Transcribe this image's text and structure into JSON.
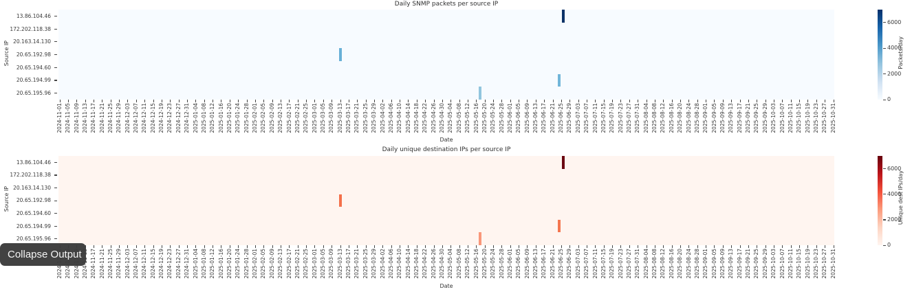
{
  "overlay": {
    "collapse_button_label": "Collapse Output"
  },
  "chart_data": {
    "type": "heatmap",
    "layout_note": "two stacked seaborn-style heatmaps sharing x and y axes, colorbar on right",
    "x_axis": {
      "label": "Date",
      "start": "2024-11-01",
      "end": "2025-10-31",
      "tick_interval_days": 4,
      "tick_labels": [
        "2024-11-01",
        "2024-11-05",
        "2024-11-09",
        "2024-11-13",
        "2024-11-17",
        "2024-11-21",
        "2024-11-25",
        "2024-11-29",
        "2024-12-03",
        "2024-12-07",
        "2024-12-11",
        "2024-12-15",
        "2024-12-19",
        "2024-12-23",
        "2024-12-27",
        "2024-12-31",
        "2025-01-04",
        "2025-01-08",
        "2025-01-12",
        "2025-01-16",
        "2025-01-20",
        "2025-01-24",
        "2025-01-28",
        "2025-02-01",
        "2025-02-05",
        "2025-02-09",
        "2025-02-13",
        "2025-02-17",
        "2025-02-21",
        "2025-02-25",
        "2025-03-01",
        "2025-03-05",
        "2025-03-09",
        "2025-03-13",
        "2025-03-17",
        "2025-03-21",
        "2025-03-25",
        "2025-03-29",
        "2025-04-02",
        "2025-04-06",
        "2025-04-10",
        "2025-04-14",
        "2025-04-18",
        "2025-04-22",
        "2025-04-26",
        "2025-04-30",
        "2025-05-04",
        "2025-05-08",
        "2025-05-12",
        "2025-05-16",
        "2025-05-20",
        "2025-05-24",
        "2025-05-28",
        "2025-06-01",
        "2025-06-05",
        "2025-06-09",
        "2025-06-13",
        "2025-06-17",
        "2025-06-21",
        "2025-06-25",
        "2025-06-29",
        "2025-07-03",
        "2025-07-07",
        "2025-07-11",
        "2025-07-15",
        "2025-07-19",
        "2025-07-23",
        "2025-07-27",
        "2025-07-31",
        "2025-08-04",
        "2025-08-08",
        "2025-08-12",
        "2025-08-16",
        "2025-08-20",
        "2025-08-24",
        "2025-08-28",
        "2025-09-01",
        "2025-09-05",
        "2025-09-09",
        "2025-09-13",
        "2025-09-17",
        "2025-09-21",
        "2025-09-25",
        "2025-09-29",
        "2025-10-03",
        "2025-10-07",
        "2025-10-11",
        "2025-10-15",
        "2025-10-19",
        "2025-10-23",
        "2025-10-27",
        "2025-10-31"
      ]
    },
    "y_axis": {
      "label": "Source IP",
      "rows": [
        "13.86.104.46",
        "172.202.118.38",
        "20.163.14.130",
        "20.65.192.98",
        "20.65.194.60",
        "20.65.194.99",
        "20.65.195.96"
      ]
    },
    "charts": [
      {
        "title": "Daily SNMP packets per source IP",
        "colormap": "Blues",
        "background": "#f7fbff",
        "vmin": 0,
        "vmax": 7000,
        "colorbar": {
          "label": "Packets/day",
          "ticks": [
            0,
            2000,
            4000,
            6000
          ],
          "gradient": [
            "#f7fbff",
            "#d0e1f2",
            "#94c4df",
            "#4a98c9",
            "#1764ab",
            "#08306b"
          ]
        },
        "nonzero_cells": [
          {
            "row": "13.86.104.46",
            "date": "2025-06-26",
            "value": 7000,
            "color": "#0d3368"
          },
          {
            "row": "20.65.192.98",
            "date": "2025-03-13",
            "value": 2400,
            "color": "#68b0d7"
          },
          {
            "row": "20.65.194.99",
            "date": "2025-06-24",
            "value": 2300,
            "color": "#71b5d9"
          },
          {
            "row": "20.65.195.96",
            "date": "2025-05-18",
            "value": 1700,
            "color": "#91c5de"
          }
        ]
      },
      {
        "title": "Daily unique destination IPs per source IP",
        "colormap": "Reds",
        "background": "#fff5f0",
        "vmin": 0,
        "vmax": 7000,
        "colorbar": {
          "label": "Unique dest IPs/day",
          "ticks": [
            0,
            2000,
            4000,
            6000
          ],
          "gradient": [
            "#fff5f0",
            "#fdd4c2",
            "#fc9b7c",
            "#f4503a",
            "#bc141a",
            "#67000d"
          ]
        },
        "nonzero_cells": [
          {
            "row": "13.86.104.46",
            "date": "2025-06-26",
            "value": 7000,
            "color": "#6b0712"
          },
          {
            "row": "20.65.192.98",
            "date": "2025-03-13",
            "value": 2500,
            "color": "#f4704b"
          },
          {
            "row": "20.65.194.99",
            "date": "2025-06-24",
            "value": 2400,
            "color": "#f4764f"
          },
          {
            "row": "20.65.195.96",
            "date": "2025-05-18",
            "value": 1800,
            "color": "#f9977a"
          }
        ]
      }
    ]
  }
}
